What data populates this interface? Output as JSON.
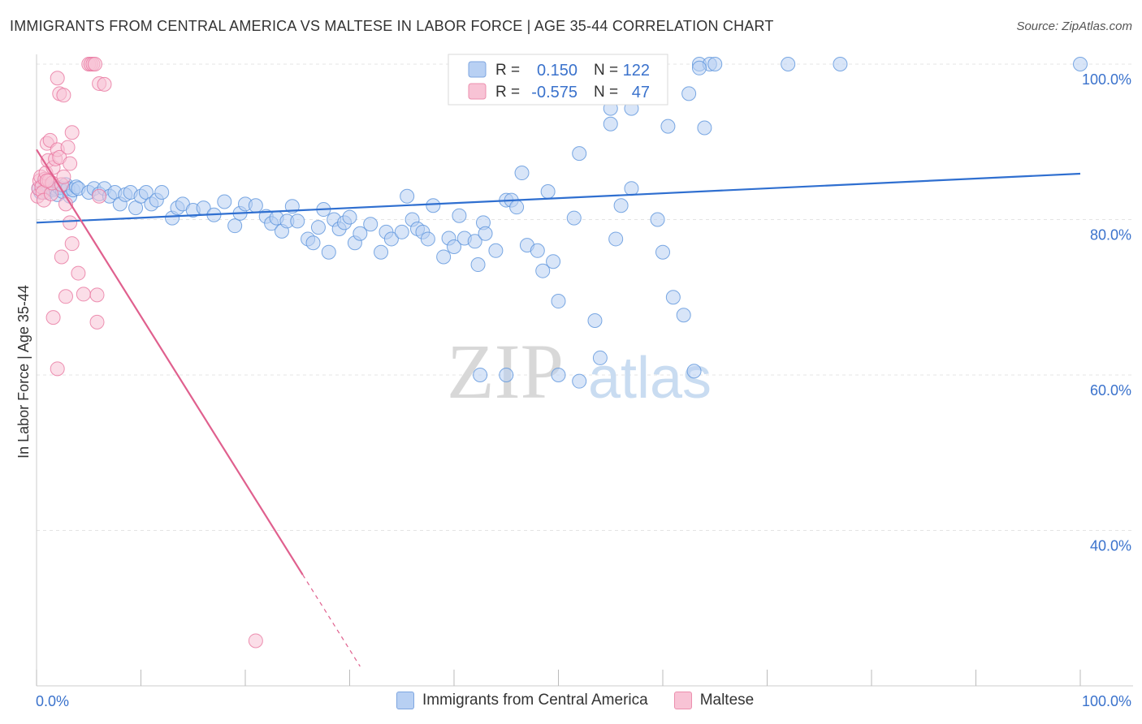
{
  "title": "IMMIGRANTS FROM CENTRAL AMERICA VS MALTESE IN LABOR FORCE | AGE 35-44 CORRELATION CHART",
  "source": "Source: ZipAtlas.com",
  "watermark": {
    "zip": "ZIP",
    "atlas": "atlas"
  },
  "colors": {
    "blue": "#5b93dc",
    "blue_fill": "#b8d0f3",
    "blue_line": "#2f6fd0",
    "pink": "#e8769f",
    "pink_fill": "#f8c3d5",
    "pink_line": "#e0608e",
    "axis_label": "#3a72cc"
  },
  "legend": {
    "rows": [
      {
        "r_label": "R =",
        "r_value": "0.150",
        "n_label": "N =",
        "n_value": "122"
      },
      {
        "r_label": "R =",
        "r_value": "-0.575",
        "n_label": "N =",
        "n_value": "47"
      }
    ]
  },
  "bottom_legend": [
    "Immigrants from Central America",
    "Maltese"
  ],
  "chart_data": {
    "type": "scatter",
    "title": "IMMIGRANTS FROM CENTRAL AMERICA VS MALTESE IN LABOR FORCE | AGE 35-44 CORRELATION CHART",
    "xlabel": "",
    "ylabel": "In Labor Force | Age 35-44",
    "xlim": [
      0,
      100
    ],
    "ylim": [
      20,
      100
    ],
    "x_tick_labels": [
      "0.0%",
      "100.0%"
    ],
    "y_ticks": [
      100,
      80,
      60,
      40
    ],
    "y_tick_labels": [
      "100.0%",
      "80.0%",
      "60.0%",
      "40.0%"
    ],
    "grid": true,
    "legend_position": "top-center",
    "series": [
      {
        "name": "Immigrants from Central America",
        "r": 0.15,
        "n": 122,
        "trend": {
          "x": [
            0,
            100
          ],
          "y": [
            79.6,
            85.9
          ]
        },
        "points": [
          [
            0.2,
            84
          ],
          [
            0.4,
            83.5
          ],
          [
            0.6,
            84.5
          ],
          [
            0.8,
            84
          ],
          [
            1,
            83.5
          ],
          [
            1.2,
            84.2
          ],
          [
            1.4,
            84
          ],
          [
            1.6,
            83.8
          ],
          [
            1.8,
            84
          ],
          [
            2,
            83.2
          ],
          [
            2.2,
            84.1
          ],
          [
            2.5,
            83.6
          ],
          [
            2.8,
            84.5
          ],
          [
            3,
            84
          ],
          [
            3.2,
            83
          ],
          [
            3.5,
            83.8
          ],
          [
            3.8,
            84.2
          ],
          [
            4,
            84
          ],
          [
            5,
            83.5
          ],
          [
            5.5,
            84
          ],
          [
            6,
            83.3
          ],
          [
            6.5,
            84
          ],
          [
            7,
            83
          ],
          [
            7.5,
            83.5
          ],
          [
            8,
            82
          ],
          [
            8.5,
            83.2
          ],
          [
            9,
            83.5
          ],
          [
            9.5,
            81.5
          ],
          [
            10,
            83
          ],
          [
            10.5,
            83.5
          ],
          [
            11,
            82
          ],
          [
            11.5,
            82.5
          ],
          [
            12,
            83.5
          ],
          [
            13,
            80.2
          ],
          [
            13.5,
            81.5
          ],
          [
            14,
            82
          ],
          [
            15,
            81.2
          ],
          [
            16,
            81.5
          ],
          [
            17,
            80.6
          ],
          [
            18,
            82.3
          ],
          [
            19,
            79.2
          ],
          [
            19.5,
            80.8
          ],
          [
            20,
            82
          ],
          [
            21,
            81.8
          ],
          [
            22,
            80.4
          ],
          [
            22.5,
            79.5
          ],
          [
            23,
            80.2
          ],
          [
            23.5,
            78.5
          ],
          [
            24,
            79.8
          ],
          [
            24.5,
            81.7
          ],
          [
            25,
            79.8
          ],
          [
            26,
            77.5
          ],
          [
            26.5,
            77
          ],
          [
            27,
            79
          ],
          [
            27.5,
            81.3
          ],
          [
            28,
            75.8
          ],
          [
            28.5,
            80
          ],
          [
            29,
            78.8
          ],
          [
            29.5,
            79.6
          ],
          [
            30,
            80.3
          ],
          [
            30.5,
            77
          ],
          [
            31,
            78.2
          ],
          [
            32,
            79.4
          ],
          [
            33,
            75.8
          ],
          [
            33.5,
            78.4
          ],
          [
            34,
            77.5
          ],
          [
            35,
            78.4
          ],
          [
            35.5,
            83
          ],
          [
            36,
            80
          ],
          [
            36.5,
            78.8
          ],
          [
            37,
            78.4
          ],
          [
            37.5,
            77.5
          ],
          [
            38,
            81.8
          ],
          [
            39,
            75.2
          ],
          [
            39.5,
            77.6
          ],
          [
            40,
            76.5
          ],
          [
            40.5,
            80.5
          ],
          [
            41,
            77.6
          ],
          [
            42,
            77.2
          ],
          [
            42.3,
            74.2
          ],
          [
            42.8,
            79.6
          ],
          [
            43,
            78.2
          ],
          [
            44,
            76
          ],
          [
            45,
            82.5
          ],
          [
            45.5,
            82.5
          ],
          [
            46,
            81.6
          ],
          [
            46.5,
            86
          ],
          [
            47,
            76.7
          ],
          [
            48,
            76
          ],
          [
            48.5,
            73.4
          ],
          [
            49,
            83.6
          ],
          [
            49.5,
            74.6
          ],
          [
            50,
            69.5
          ],
          [
            51.5,
            80.2
          ],
          [
            52,
            88.5
          ],
          [
            53.5,
            67
          ],
          [
            54,
            62.2
          ],
          [
            55,
            92.3
          ],
          [
            55.5,
            77.5
          ],
          [
            56,
            81.8
          ],
          [
            57,
            94.3
          ],
          [
            58,
            98
          ],
          [
            59.5,
            80
          ],
          [
            60,
            75.8
          ],
          [
            60.5,
            92
          ],
          [
            61,
            70
          ],
          [
            62,
            67.7
          ],
          [
            62.5,
            96.2
          ],
          [
            63,
            60.5
          ],
          [
            63.5,
            100
          ],
          [
            64,
            91.8
          ],
          [
            64.5,
            100
          ],
          [
            65,
            100
          ],
          [
            63.5,
            99.5
          ],
          [
            72,
            100
          ],
          [
            77,
            100
          ],
          [
            100,
            100
          ],
          [
            42.5,
            60
          ],
          [
            45,
            60
          ],
          [
            50,
            60
          ],
          [
            52,
            59.2
          ],
          [
            55,
            94.3
          ],
          [
            57,
            84
          ]
        ]
      },
      {
        "name": "Maltese",
        "r": -0.575,
        "n": 47,
        "trend": {
          "x": [
            0,
            25.5,
            31
          ],
          "y": [
            89,
            34.3,
            22.5
          ]
        },
        "points": [
          [
            0.1,
            83
          ],
          [
            0.2,
            84
          ],
          [
            0.3,
            85
          ],
          [
            0.4,
            85.5
          ],
          [
            0.5,
            84.2
          ],
          [
            0.6,
            83.5
          ],
          [
            0.7,
            82.5
          ],
          [
            0.8,
            85.2
          ],
          [
            0.9,
            86
          ],
          [
            1,
            89.8
          ],
          [
            1.1,
            87.6
          ],
          [
            1.2,
            85
          ],
          [
            1.3,
            90.2
          ],
          [
            1.4,
            83.3
          ],
          [
            1.5,
            84.7
          ],
          [
            1.6,
            86.7
          ],
          [
            1.8,
            87.8
          ],
          [
            2,
            89
          ],
          [
            2.2,
            88
          ],
          [
            2.4,
            84.5
          ],
          [
            2.6,
            85.5
          ],
          [
            2.8,
            82
          ],
          [
            3,
            89.3
          ],
          [
            3.2,
            87.2
          ],
          [
            3.4,
            91.2
          ],
          [
            2,
            98.2
          ],
          [
            2.2,
            96.2
          ],
          [
            2.6,
            96
          ],
          [
            3.2,
            79.6
          ],
          [
            3.4,
            76.9
          ],
          [
            2.4,
            75.2
          ],
          [
            2.8,
            70.1
          ],
          [
            4,
            73.1
          ],
          [
            4.5,
            70.4
          ],
          [
            5,
            100
          ],
          [
            5.2,
            100
          ],
          [
            5.4,
            100
          ],
          [
            5.6,
            100
          ],
          [
            6,
            97.5
          ],
          [
            6.5,
            97.4
          ],
          [
            5.8,
            70.3
          ],
          [
            5.8,
            66.8
          ],
          [
            1.6,
            67.4
          ],
          [
            2,
            60.8
          ],
          [
            21,
            25.8
          ],
          [
            6,
            83
          ],
          [
            1,
            85
          ]
        ]
      }
    ]
  }
}
